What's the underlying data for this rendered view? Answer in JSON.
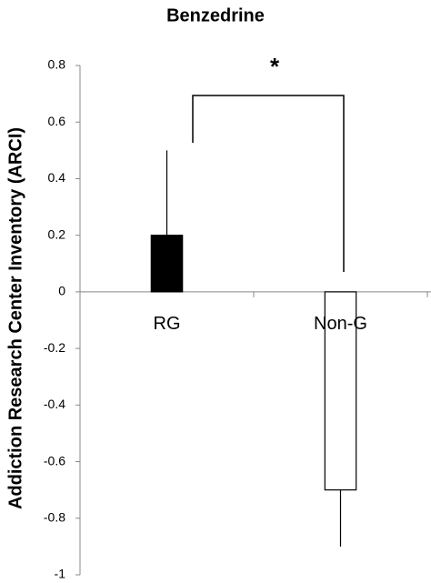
{
  "chart_data": {
    "type": "bar",
    "title": "Benzedrine",
    "y_label": "Addiction Research Center Inventory (ARCI)",
    "categories": [
      "RG",
      "Non-G"
    ],
    "values": [
      0.2,
      -0.7
    ],
    "errors": [
      0.3,
      0.2
    ],
    "colors": [
      "#000000",
      "#ffffff"
    ],
    "ylim": [
      -1,
      0.8
    ],
    "yticks": [
      0.8,
      0.6,
      0.4,
      0.2,
      0,
      -0.2,
      -0.4,
      -0.6,
      -0.8,
      -1
    ],
    "grid": false,
    "annotation": "*"
  }
}
